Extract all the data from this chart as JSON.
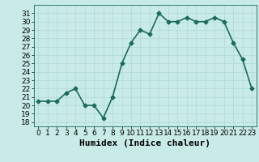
{
  "x": [
    0,
    1,
    2,
    3,
    4,
    5,
    6,
    7,
    8,
    9,
    10,
    11,
    12,
    13,
    14,
    15,
    16,
    17,
    18,
    19,
    20,
    21,
    22,
    23
  ],
  "y": [
    20.5,
    20.5,
    20.5,
    21.5,
    22.0,
    20.0,
    20.0,
    18.5,
    21.0,
    25.0,
    27.5,
    29.0,
    28.5,
    31.0,
    30.0,
    30.0,
    30.5,
    30.0,
    30.0,
    30.5,
    30.0,
    27.5,
    25.5,
    22.0
  ],
  "color": "#1a6b5a",
  "bg_color": "#c8ebe8",
  "grid_color": "#b0d8d4",
  "xlabel": "Humidex (Indice chaleur)",
  "ylim": [
    17.5,
    32.0
  ],
  "xlim": [
    -0.5,
    23.5
  ],
  "yticks": [
    18,
    19,
    20,
    21,
    22,
    23,
    24,
    25,
    26,
    27,
    28,
    29,
    30,
    31
  ],
  "xticks": [
    0,
    1,
    2,
    3,
    4,
    5,
    6,
    7,
    8,
    9,
    10,
    11,
    12,
    13,
    14,
    15,
    16,
    17,
    18,
    19,
    20,
    21,
    22,
    23
  ],
  "marker": "D",
  "markersize": 2.5,
  "linewidth": 1.2,
  "xlabel_fontsize": 8,
  "tick_fontsize": 6.5
}
